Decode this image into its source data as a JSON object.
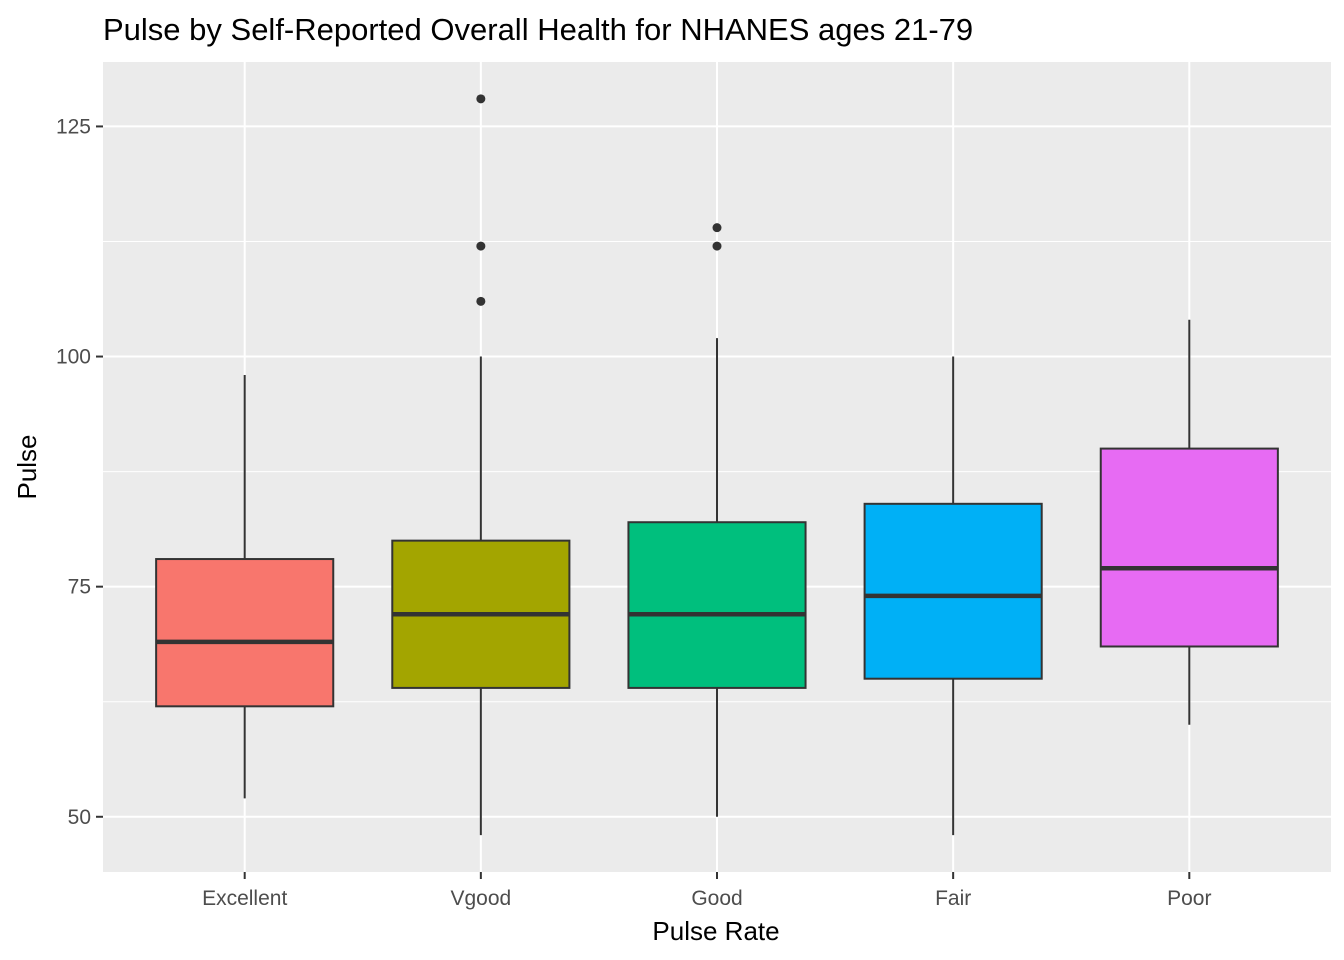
{
  "chart_data": {
    "type": "boxplot",
    "title": "Pulse by Self-Reported Overall Health for NHANES ages 21-79",
    "xlabel": "Pulse Rate",
    "ylabel": "Pulse",
    "ylim": [
      44,
      132
    ],
    "y_ticks": [
      50,
      75,
      100,
      125
    ],
    "y_tick_labels": [
      "50",
      "75",
      "100",
      "125"
    ],
    "grid": true,
    "legend": "none",
    "categories": [
      "Excellent",
      "Vgood",
      "Good",
      "Fair",
      "Poor"
    ],
    "colors": [
      "#F8766D",
      "#A3A500",
      "#00BF7D",
      "#00B0F6",
      "#E76BF3"
    ],
    "boxes": [
      {
        "category": "Excellent",
        "whisker_low": 52,
        "q1": 62,
        "median": 69,
        "q3": 78,
        "whisker_high": 98,
        "outliers": []
      },
      {
        "category": "Vgood",
        "whisker_low": 48,
        "q1": 64,
        "median": 72,
        "q3": 80,
        "whisker_high": 100,
        "outliers": [
          106,
          112,
          128
        ]
      },
      {
        "category": "Good",
        "whisker_low": 50,
        "q1": 64,
        "median": 72,
        "q3": 82,
        "whisker_high": 102,
        "outliers": [
          112,
          114
        ]
      },
      {
        "category": "Fair",
        "whisker_low": 48,
        "q1": 65,
        "median": 74,
        "q3": 84,
        "whisker_high": 100,
        "outliers": []
      },
      {
        "category": "Poor",
        "whisker_low": 60,
        "q1": 68.5,
        "median": 77,
        "q3": 90,
        "whisker_high": 104,
        "outliers": []
      }
    ]
  }
}
